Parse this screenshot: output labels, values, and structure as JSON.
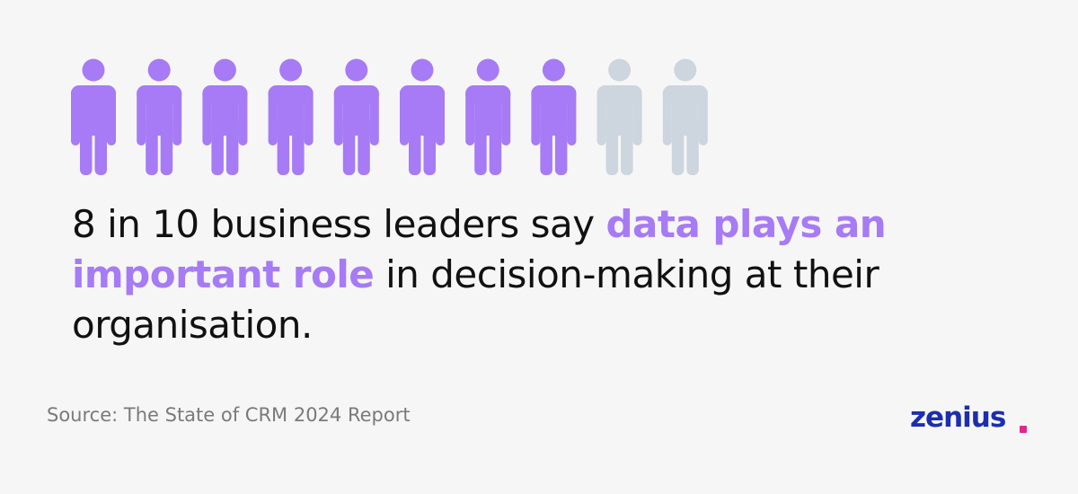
{
  "chart_data": {
    "type": "pictogram",
    "filled": 8,
    "total": 10,
    "color": "#a67bf5",
    "empty_color": "#cdd5de",
    "title_parts": [
      "8 in 10 business leaders say ",
      "data plays an important role",
      " in decision-making at their organisation."
    ],
    "source": "Source: The State of CRM 2024 Report"
  },
  "brand": "zenius"
}
